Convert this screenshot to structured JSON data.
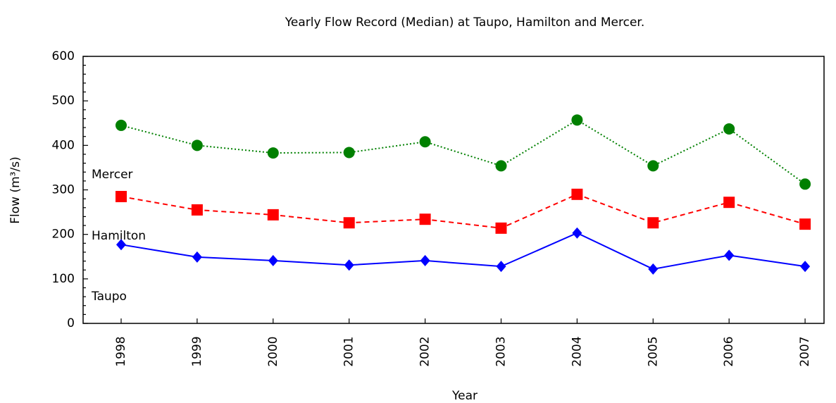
{
  "chart_data": {
    "type": "line",
    "title": "Yearly Flow Record (Median) at Taupo, Hamilton and Mercer.",
    "x_label": "Year",
    "y_label": "Flow (m³/s)",
    "categories": [
      "1998",
      "1999",
      "2000",
      "2001",
      "2002",
      "2003",
      "2004",
      "2005",
      "2006",
      "2007"
    ],
    "series": [
      {
        "name": "Mercer",
        "color": "#008000",
        "marker": "circle",
        "dash": "dotted",
        "values": [
          445,
          400,
          383,
          384,
          408,
          354,
          457,
          354,
          437,
          313
        ]
      },
      {
        "name": "Hamilton",
        "color": "#ff0000",
        "marker": "square",
        "dash": "dashed",
        "values": [
          285,
          255,
          244,
          226,
          234,
          214,
          290,
          226,
          272,
          223
        ]
      },
      {
        "name": "Taupo",
        "color": "#0000ff",
        "marker": "diamond",
        "dash": "solid",
        "values": [
          177,
          149,
          141,
          131,
          141,
          128,
          203,
          122,
          153,
          128
        ]
      }
    ],
    "ylim": [
      0,
      600
    ],
    "yticks": [
      0,
      100,
      200,
      300,
      400,
      500,
      600
    ],
    "grid": false
  }
}
